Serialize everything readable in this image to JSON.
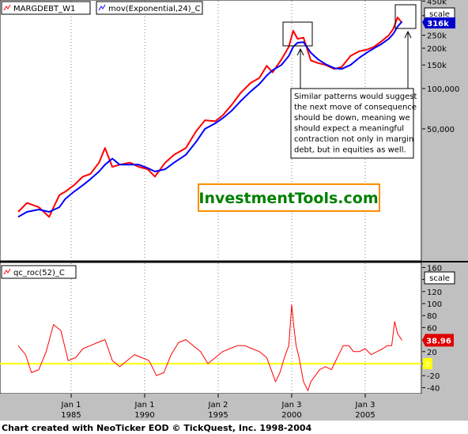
{
  "footer": "Chart created with NeoTicker EOD © TickQuest, Inc. 1998-2004",
  "watermark": "InvestmentTools.com",
  "annotation": [
    "Similar patterns would suggest",
    "the next move of consequence",
    "should be down, meaning we",
    "should expect a meaningful",
    "contraction not only in margin",
    "debt, but in equities as well."
  ],
  "colors": {
    "price": "#ff0000",
    "average": "#0000ff",
    "zero_line": "#ffff00",
    "background": "#ffffff",
    "axis_panel": "#c0c0c0",
    "watermark": "#008000",
    "watermark_border": "#ff8c00"
  },
  "chart_data": [
    {
      "type": "line",
      "scale": "log",
      "series": [
        {
          "name": "MARGDEBT_W1",
          "color": "#ff0000",
          "x": [
            1981.4,
            1982.0,
            1982.8,
            1983.5,
            1984.2,
            1984.6,
            1985.2,
            1985.8,
            1986.3,
            1986.9,
            1987.3,
            1987.8,
            1988.3,
            1989.0,
            1989.6,
            1990.2,
            1990.7,
            1991.4,
            1992.0,
            1992.8,
            1993.5,
            1994.1,
            1994.8,
            1995.3,
            1995.9,
            1996.5,
            1997.2,
            1997.8,
            1998.3,
            1998.7,
            1999.3,
            1999.8,
            2000.1,
            2000.4,
            2000.8,
            2001.3,
            2001.8,
            2002.3,
            2002.9,
            2003.4,
            2004.0,
            2004.6,
            2005.1,
            2005.6,
            2006.1,
            2006.6,
            2006.9,
            2007.2,
            2007.5
          ],
          "y": [
            12,
            14,
            13,
            11,
            16,
            17,
            19,
            22,
            23,
            28,
            36,
            26,
            27,
            28,
            26,
            25,
            22,
            28,
            32,
            36,
            48,
            58,
            57,
            63,
            75,
            92,
            110,
            120,
            148,
            132,
            165,
            205,
            270,
            235,
            240,
            162,
            155,
            150,
            140,
            145,
            175,
            190,
            195,
            205,
            225,
            250,
            278,
            340,
            310
          ]
        },
        {
          "name": "mov(Exponential,24)_C",
          "color": "#0000ff",
          "x": [
            1981.4,
            1982.0,
            1982.8,
            1983.5,
            1984.2,
            1984.6,
            1985.2,
            1985.8,
            1986.3,
            1986.9,
            1987.3,
            1987.8,
            1988.3,
            1989.0,
            1989.6,
            1990.2,
            1990.7,
            1991.4,
            1992.0,
            1992.8,
            1993.5,
            1994.1,
            1994.8,
            1995.3,
            1995.9,
            1996.5,
            1997.2,
            1997.8,
            1998.3,
            1998.7,
            1999.3,
            1999.8,
            2000.1,
            2000.4,
            2000.8,
            2001.3,
            2001.8,
            2002.3,
            2002.9,
            2003.4,
            2004.0,
            2004.6,
            2005.1,
            2005.6,
            2006.1,
            2006.6,
            2006.9,
            2007.2,
            2007.5
          ],
          "y": [
            11,
            12,
            12.5,
            12,
            13,
            15,
            17,
            19,
            21,
            24,
            27,
            30,
            27,
            27,
            27,
            25.5,
            24,
            25,
            28,
            32,
            40,
            50,
            55,
            60,
            68,
            80,
            95,
            108,
            125,
            137,
            150,
            175,
            205,
            220,
            222,
            185,
            165,
            152,
            142,
            140,
            150,
            170,
            185,
            200,
            215,
            235,
            255,
            290,
            316
          ]
        }
      ],
      "y_ticks": [
        "450k",
        "350k",
        "250k",
        "200k",
        "150k",
        "100,000",
        "50,000"
      ],
      "last_value_label": "316k",
      "scale_button": "scale"
    },
    {
      "type": "line",
      "series": [
        {
          "name": "qc_roc(52)_C",
          "color": "#ff0000",
          "x": [
            1981.4,
            1981.9,
            1982.3,
            1982.8,
            1983.3,
            1983.8,
            1984.3,
            1984.8,
            1985.3,
            1985.8,
            1986.3,
            1986.8,
            1987.3,
            1987.8,
            1988.3,
            1988.8,
            1989.3,
            1989.8,
            1990.3,
            1990.8,
            1991.3,
            1991.8,
            1992.3,
            1992.8,
            1993.3,
            1993.8,
            1994.3,
            1994.8,
            1995.3,
            1995.8,
            1996.3,
            1996.8,
            1997.3,
            1997.8,
            1998.3,
            1998.6,
            1998.9,
            1999.2,
            1999.5,
            1999.8,
            2000.0,
            2000.15,
            2000.3,
            2000.5,
            2000.8,
            2001.1,
            2001.3,
            2001.6,
            2001.9,
            2002.3,
            2002.7,
            2003.1,
            2003.5,
            2003.9,
            2004.2,
            2004.6,
            2005.0,
            2005.4,
            2005.8,
            2006.2,
            2006.5,
            2006.8,
            2007.0,
            2007.2,
            2007.5
          ],
          "y": [
            30,
            15,
            -15,
            -10,
            20,
            65,
            55,
            5,
            10,
            25,
            30,
            35,
            40,
            5,
            -5,
            5,
            15,
            10,
            5,
            -20,
            -15,
            15,
            35,
            40,
            30,
            20,
            0,
            10,
            20,
            25,
            30,
            30,
            25,
            20,
            10,
            -10,
            -30,
            -15,
            10,
            30,
            98,
            60,
            30,
            10,
            -30,
            -45,
            -30,
            -20,
            -10,
            -5,
            -10,
            10,
            30,
            30,
            20,
            20,
            25,
            15,
            20,
            25,
            30,
            30,
            70,
            50,
            39
          ]
        }
      ],
      "y_ticks": [
        "160",
        "140",
        "120",
        "100",
        "80",
        "60",
        "40",
        "20",
        "0",
        "-20",
        "-40"
      ],
      "last_value_label": "38.96",
      "zero_marker": "0",
      "scale_button": "scale"
    }
  ],
  "x_axis": {
    "ticks": [
      {
        "month": "Jan 1",
        "year": "1985",
        "x": 1985.0
      },
      {
        "month": "Jan 1",
        "year": "1990",
        "x": 1990.0
      },
      {
        "month": "Jan 2",
        "year": "1995",
        "x": 1995.0
      },
      {
        "month": "Jan 3",
        "year": "2000",
        "x": 2000.0
      },
      {
        "month": "Jan 3",
        "year": "2005",
        "x": 2005.0
      }
    ]
  }
}
